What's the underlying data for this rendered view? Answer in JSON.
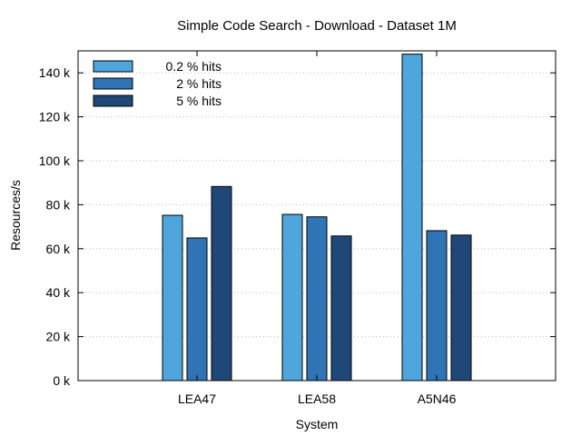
{
  "chart_data": {
    "type": "bar",
    "title": "Simple Code Search - Download - Dataset 1M",
    "xlabel": "System",
    "ylabel": "Resources/s",
    "categories": [
      "LEA47",
      "LEA58",
      "A5N46"
    ],
    "series": [
      {
        "name": "0.2 % hits",
        "values": [
          75200,
          75600,
          148500
        ],
        "color": "#4ea6dc"
      },
      {
        "name": "2 % hits",
        "values": [
          64900,
          74500,
          68200
        ],
        "color": "#2f74b5"
      },
      {
        "name": "5 % hits",
        "values": [
          88300,
          65800,
          66200
        ],
        "color": "#1f4879"
      }
    ],
    "ylim": [
      0,
      150000
    ],
    "yticks": [
      {
        "value": 0,
        "label": "0 k"
      },
      {
        "value": 20000,
        "label": "20 k"
      },
      {
        "value": 40000,
        "label": "40 k"
      },
      {
        "value": 60000,
        "label": "60 k"
      },
      {
        "value": 80000,
        "label": "80 k"
      },
      {
        "value": 100000,
        "label": "100 k"
      },
      {
        "value": 120000,
        "label": "120 k"
      },
      {
        "value": 140000,
        "label": "140 k"
      }
    ],
    "grid": true,
    "legend_position": "top-left"
  }
}
